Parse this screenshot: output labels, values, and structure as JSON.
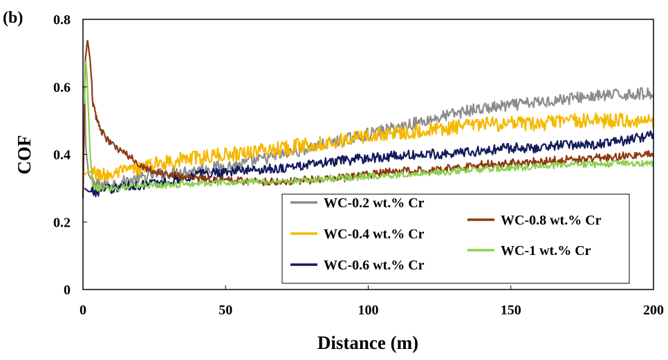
{
  "chart_data": {
    "type": "line",
    "panel_label": "(b)",
    "xlabel": "Distance (m)",
    "ylabel": "COF",
    "xlim": [
      0,
      200
    ],
    "ylim": [
      0,
      0.8
    ],
    "x_ticks": [
      0,
      50,
      100,
      150,
      200
    ],
    "x_tick_labels": [
      "0",
      "50",
      "100",
      "150",
      "200"
    ],
    "y_ticks": [
      0,
      0.2,
      0.4,
      0.6,
      0.8
    ],
    "y_tick_labels": [
      "0",
      "0.2",
      "0.4",
      "0.6",
      "0.8"
    ],
    "grid": false,
    "legend_position": "bottom-right",
    "series": [
      {
        "name": "WC-0.2 wt.% Cr",
        "color": "#8c8c8c",
        "noise": 0.018,
        "points": [
          [
            0.5,
            0.6
          ],
          [
            1,
            0.42
          ],
          [
            2,
            0.34
          ],
          [
            4,
            0.31
          ],
          [
            8,
            0.31
          ],
          [
            15,
            0.32
          ],
          [
            25,
            0.34
          ],
          [
            35,
            0.35
          ],
          [
            45,
            0.36
          ],
          [
            55,
            0.37
          ],
          [
            65,
            0.39
          ],
          [
            75,
            0.41
          ],
          [
            85,
            0.43
          ],
          [
            95,
            0.45
          ],
          [
            105,
            0.47
          ],
          [
            115,
            0.49
          ],
          [
            125,
            0.51
          ],
          [
            135,
            0.53
          ],
          [
            145,
            0.54
          ],
          [
            155,
            0.55
          ],
          [
            165,
            0.56
          ],
          [
            175,
            0.57
          ],
          [
            185,
            0.575
          ],
          [
            195,
            0.58
          ],
          [
            200,
            0.58
          ]
        ]
      },
      {
        "name": "WC-0.4 wt.% Cr",
        "color": "#f5b800",
        "noise": 0.022,
        "points": [
          [
            0.5,
            0.34
          ],
          [
            2,
            0.35
          ],
          [
            5,
            0.34
          ],
          [
            10,
            0.34
          ],
          [
            20,
            0.36
          ],
          [
            30,
            0.38
          ],
          [
            40,
            0.39
          ],
          [
            50,
            0.4
          ],
          [
            60,
            0.41
          ],
          [
            70,
            0.42
          ],
          [
            80,
            0.43
          ],
          [
            90,
            0.44
          ],
          [
            100,
            0.455
          ],
          [
            110,
            0.465
          ],
          [
            120,
            0.47
          ],
          [
            130,
            0.48
          ],
          [
            140,
            0.49
          ],
          [
            150,
            0.49
          ],
          [
            160,
            0.49
          ],
          [
            170,
            0.5
          ],
          [
            180,
            0.5
          ],
          [
            190,
            0.5
          ],
          [
            200,
            0.5
          ]
        ]
      },
      {
        "name": "WC-0.6 wt.% Cr",
        "color": "#141a5c",
        "noise": 0.015,
        "points": [
          [
            0.5,
            0.3
          ],
          [
            2,
            0.29
          ],
          [
            5,
            0.29
          ],
          [
            10,
            0.3
          ],
          [
            20,
            0.31
          ],
          [
            30,
            0.32
          ],
          [
            40,
            0.34
          ],
          [
            50,
            0.35
          ],
          [
            60,
            0.355
          ],
          [
            70,
            0.36
          ],
          [
            80,
            0.37
          ],
          [
            90,
            0.38
          ],
          [
            100,
            0.39
          ],
          [
            110,
            0.395
          ],
          [
            120,
            0.4
          ],
          [
            130,
            0.405
          ],
          [
            140,
            0.41
          ],
          [
            150,
            0.42
          ],
          [
            160,
            0.42
          ],
          [
            170,
            0.43
          ],
          [
            180,
            0.43
          ],
          [
            190,
            0.44
          ],
          [
            200,
            0.46
          ]
        ]
      },
      {
        "name": "WC-0.8 wt.% Cr",
        "color": "#8b3a0f",
        "noise": 0.012,
        "points": [
          [
            0,
            0.27
          ],
          [
            0.8,
            0.68
          ],
          [
            1.6,
            0.74
          ],
          [
            2.5,
            0.68
          ],
          [
            3.5,
            0.55
          ],
          [
            5,
            0.5
          ],
          [
            7,
            0.46
          ],
          [
            10,
            0.43
          ],
          [
            15,
            0.4
          ],
          [
            20,
            0.37
          ],
          [
            25,
            0.35
          ],
          [
            30,
            0.34
          ],
          [
            40,
            0.33
          ],
          [
            50,
            0.325
          ],
          [
            60,
            0.32
          ],
          [
            70,
            0.32
          ],
          [
            80,
            0.325
          ],
          [
            90,
            0.33
          ],
          [
            100,
            0.34
          ],
          [
            110,
            0.35
          ],
          [
            120,
            0.355
          ],
          [
            130,
            0.36
          ],
          [
            140,
            0.37
          ],
          [
            150,
            0.375
          ],
          [
            160,
            0.38
          ],
          [
            170,
            0.385
          ],
          [
            180,
            0.39
          ],
          [
            190,
            0.395
          ],
          [
            200,
            0.4
          ]
        ]
      },
      {
        "name": "WC-1 wt.% Cr",
        "color": "#8dd050",
        "noise": 0.01,
        "points": [
          [
            0.5,
            0.55
          ],
          [
            1,
            0.68
          ],
          [
            1.5,
            0.62
          ],
          [
            2.5,
            0.4
          ],
          [
            3.5,
            0.3
          ],
          [
            5,
            0.3
          ],
          [
            10,
            0.3
          ],
          [
            20,
            0.31
          ],
          [
            30,
            0.31
          ],
          [
            40,
            0.315
          ],
          [
            50,
            0.315
          ],
          [
            60,
            0.32
          ],
          [
            70,
            0.32
          ],
          [
            80,
            0.325
          ],
          [
            90,
            0.33
          ],
          [
            100,
            0.335
          ],
          [
            110,
            0.34
          ],
          [
            120,
            0.345
          ],
          [
            130,
            0.35
          ],
          [
            140,
            0.355
          ],
          [
            150,
            0.36
          ],
          [
            160,
            0.365
          ],
          [
            170,
            0.37
          ],
          [
            180,
            0.37
          ],
          [
            190,
            0.375
          ],
          [
            200,
            0.375
          ]
        ]
      }
    ],
    "legend": [
      {
        "label": "WC-0.2 wt.% Cr",
        "color": "#8c8c8c"
      },
      {
        "label": "WC-0.4 wt.% Cr",
        "color": "#f5b800"
      },
      {
        "label": "WC-0.6 wt.% Cr",
        "color": "#141a5c"
      },
      {
        "label": "WC-0.8 wt.% Cr",
        "color": "#8b3a0f"
      },
      {
        "label": "WC-1 wt.% Cr",
        "color": "#8dd050"
      }
    ]
  }
}
